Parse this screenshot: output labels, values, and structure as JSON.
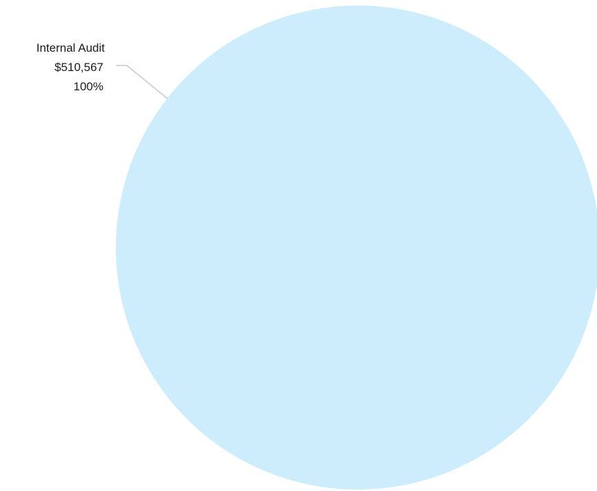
{
  "chart_data": {
    "type": "pie",
    "title": "",
    "slices": [
      {
        "label": "Internal Audit",
        "value": 510567,
        "value_label": "$510,567",
        "percent_label": "100%",
        "color": "#cdecfc"
      }
    ],
    "legend": "none",
    "leader_line_color": "#c8c8c8"
  }
}
